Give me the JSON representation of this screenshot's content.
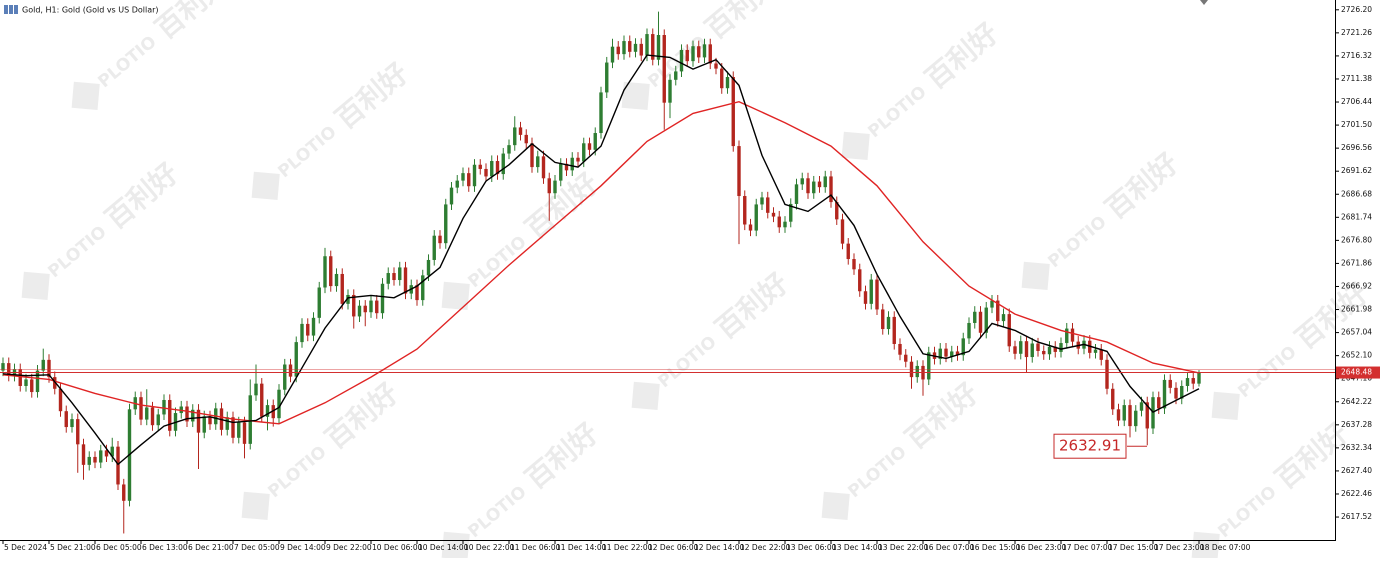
{
  "chart_data": {
    "type": "candlestick",
    "title": "Gold, H1:  Gold (Gold vs US Dollar)",
    "watermark": [
      "PLOTIO",
      "百利好"
    ],
    "up_color": "#2e7d32",
    "down_color": "#b3261e",
    "categories": [
      "5 Dec 2024",
      null,
      null,
      null,
      null,
      null,
      null,
      null,
      "5 Dec 21:00",
      null,
      null,
      null,
      null,
      null,
      null,
      null,
      "6 Dec 05:00",
      null,
      null,
      null,
      null,
      null,
      null,
      null,
      "6 Dec 13:00",
      null,
      null,
      null,
      null,
      null,
      null,
      null,
      "6 Dec 21:00",
      null,
      null,
      null,
      null,
      null,
      null,
      null,
      "7 Dec 05:00",
      null,
      null,
      null,
      null,
      null,
      null,
      null,
      "9 Dec 14:00",
      null,
      null,
      null,
      null,
      null,
      null,
      null,
      "9 Dec 22:00",
      null,
      null,
      null,
      null,
      null,
      null,
      null,
      "10 Dec 06:00",
      null,
      null,
      null,
      null,
      null,
      null,
      null,
      "10 Dec 14:00",
      null,
      null,
      null,
      null,
      null,
      null,
      null,
      "10 Dec 22:00",
      null,
      null,
      null,
      null,
      null,
      null,
      null,
      "11 Dec 06:00",
      null,
      null,
      null,
      null,
      null,
      null,
      null,
      "11 Dec 14:00",
      null,
      null,
      null,
      null,
      null,
      null,
      null,
      "11 Dec 22:00",
      null,
      null,
      null,
      null,
      null,
      null,
      null,
      "12 Dec 06:00",
      null,
      null,
      null,
      null,
      null,
      null,
      null,
      "12 Dec 14:00",
      null,
      null,
      null,
      null,
      null,
      null,
      null,
      "12 Dec 22:00",
      null,
      null,
      null,
      null,
      null,
      null,
      null,
      "13 Dec 06:00",
      null,
      null,
      null,
      null,
      null,
      null,
      null,
      "13 Dec 14:00",
      null,
      null,
      null,
      null,
      null,
      null,
      null,
      "13 Dec 22:00",
      null,
      null,
      null,
      null,
      null,
      null,
      null,
      "16 Dec 07:00",
      null,
      null,
      null,
      null,
      null,
      null,
      null,
      "16 Dec 15:00",
      null,
      null,
      null,
      null,
      null,
      null,
      null,
      "16 Dec 23:00",
      null,
      null,
      null,
      null,
      null,
      null,
      null,
      "17 Dec 07:00",
      null,
      null,
      null,
      null,
      null,
      null,
      null,
      "17 Dec 15:00",
      null,
      null,
      null,
      null,
      null,
      null,
      null,
      "17 Dec 23:00",
      null,
      null,
      null,
      null,
      null,
      null,
      null,
      "18 Dec 07:00"
    ],
    "open": [
      2648.9,
      2650.5,
      2647.8,
      2649.2,
      2645.6,
      2647.0,
      2644.3,
      2648.9,
      2651.2,
      2647.5,
      2645.0,
      2640.2,
      2636.8,
      2638.5,
      2633.1,
      2628.7,
      2630.4,
      2629.2,
      2631.8,
      2630.5,
      2632.6,
      2624.5,
      2621.0,
      2640.6,
      2643.2,
      2638.4,
      2641.0,
      2637.2,
      2639.5,
      2642.6,
      2636.0,
      2639.8,
      2641.2,
      2638.0,
      2640.5,
      2635.6,
      2639.1,
      2637.4,
      2640.8,
      2636.2,
      2638.9,
      2634.5,
      2637.8,
      2633.2,
      2643.6,
      2646.1,
      2639.0,
      2641.5,
      2638.7,
      2644.8,
      2650.2,
      2647.6,
      2655.0,
      2658.9,
      2656.4,
      2660.2,
      2666.7,
      2673.4,
      2667.0,
      2669.6,
      2663.2,
      2665.1,
      2660.5,
      2662.8,
      2661.4,
      2663.9,
      2661.2,
      2667.5,
      2669.8,
      2668.3,
      2671.0,
      2665.4,
      2667.2,
      2664.0,
      2669.3,
      2672.6,
      2677.8,
      2676.2,
      2684.5,
      2688.1,
      2689.6,
      2691.2,
      2688.4,
      2693.0,
      2692.1,
      2690.5,
      2693.8,
      2691.0,
      2695.4,
      2697.2,
      2701.0,
      2699.4,
      2697.6,
      2692.5,
      2694.8,
      2690.1,
      2686.9,
      2689.6,
      2693.2,
      2691.8,
      2694.5,
      2693.7,
      2697.6,
      2696.2,
      2699.8,
      2708.5,
      2714.9,
      2718.3,
      2716.7,
      2719.5,
      2717.2,
      2718.9,
      2716.4,
      2721.0,
      2715.5,
      2720.8,
      2706.3,
      2711.2,
      2713.0,
      2717.6,
      2715.2,
      2718.4,
      2716.0,
      2718.8,
      2714.7,
      2713.6,
      2709.4,
      2711.8,
      2697.0,
      2686.3,
      2680.2,
      2678.9,
      2684.5,
      2686.0,
      2682.7,
      2681.9,
      2679.6,
      2680.8,
      2684.6,
      2688.8,
      2690.1,
      2686.9,
      2689.4,
      2688.2,
      2690.5,
      2685.0,
      2681.3,
      2676.1,
      2672.8,
      2670.6,
      2665.9,
      2663.2,
      2668.4,
      2662.0,
      2657.8,
      2660.4,
      2654.6,
      2652.3,
      2650.8,
      2647.5,
      2649.9,
      2647.0,
      2652.8,
      2651.4,
      2653.6,
      2651.9,
      2653.0,
      2652.2,
      2655.8,
      2659.1,
      2661.5,
      2657.0,
      2662.4,
      2663.9,
      2659.5,
      2661.0,
      2654.1,
      2652.5,
      2655.2,
      2651.8,
      2654.7,
      2653.1,
      2652.4,
      2654.0,
      2652.9,
      2654.8,
      2657.9,
      2655.1,
      2653.6,
      2655.3,
      2652.7,
      2653.4,
      2651.2,
      2645.0,
      2640.6,
      2638.2,
      2641.5,
      2637.0,
      2640.3,
      2642.1,
      2636.5,
      2643.2,
      2640.8,
      2646.9,
      2645.2,
      2642.9,
      2645.6,
      2647.3,
      2646.1
    ],
    "high": [
      2651.7,
      2651.7,
      2650.4,
      2650.4,
      2648.2,
      2648.2,
      2650.1,
      2653.6,
      2652.4,
      2648.7,
      2646.2,
      2641.4,
      2639.7,
      2639.7,
      2634.3,
      2631.6,
      2631.6,
      2633.0,
      2633.0,
      2634.5,
      2633.8,
      2625.7,
      2641.8,
      2644.4,
      2644.4,
      2644.9,
      2642.2,
      2640.7,
      2643.8,
      2643.8,
      2641.0,
      2642.4,
      2642.4,
      2641.7,
      2641.7,
      2640.3,
      2640.3,
      2642.0,
      2642.0,
      2640.1,
      2640.1,
      2639.0,
      2639.0,
      2647.0,
      2650.2,
      2647.3,
      2642.7,
      2642.7,
      2646.0,
      2651.4,
      2651.4,
      2656.2,
      2660.1,
      2660.1,
      2661.4,
      2667.9,
      2675.2,
      2674.6,
      2670.8,
      2670.8,
      2666.3,
      2666.3,
      2664.0,
      2664.0,
      2665.1,
      2665.1,
      2668.7,
      2671.0,
      2671.0,
      2672.2,
      2672.2,
      2668.4,
      2668.4,
      2670.5,
      2673.8,
      2679.0,
      2679.0,
      2685.7,
      2689.3,
      2690.8,
      2692.4,
      2692.4,
      2694.2,
      2694.2,
      2693.3,
      2695.0,
      2695.0,
      2696.6,
      2698.4,
      2703.4,
      2702.2,
      2700.6,
      2698.8,
      2696.0,
      2696.0,
      2691.3,
      2690.8,
      2694.4,
      2694.4,
      2695.7,
      2695.7,
      2698.8,
      2698.8,
      2701.0,
      2709.7,
      2716.1,
      2720.0,
      2719.5,
      2720.7,
      2720.7,
      2720.1,
      2720.1,
      2722.2,
      2722.2,
      2725.8,
      2722.0,
      2712.4,
      2714.2,
      2718.8,
      2718.8,
      2719.6,
      2719.6,
      2720.0,
      2720.0,
      2715.9,
      2714.8,
      2713.0,
      2713.0,
      2698.2,
      2687.5,
      2681.4,
      2685.7,
      2687.2,
      2687.2,
      2683.9,
      2683.1,
      2682.0,
      2685.8,
      2690.0,
      2691.3,
      2691.3,
      2690.6,
      2690.6,
      2691.7,
      2691.7,
      2686.2,
      2682.5,
      2677.3,
      2674.0,
      2671.8,
      2667.1,
      2669.6,
      2669.6,
      2663.2,
      2661.6,
      2661.6,
      2655.8,
      2653.5,
      2652.0,
      2651.1,
      2651.1,
      2654.0,
      2654.0,
      2654.8,
      2654.8,
      2654.2,
      2654.2,
      2657.0,
      2660.3,
      2662.7,
      2662.7,
      2663.6,
      2665.1,
      2665.1,
      2662.2,
      2662.2,
      2655.3,
      2656.4,
      2656.4,
      2655.9,
      2655.9,
      2654.3,
      2655.2,
      2655.2,
      2656.0,
      2659.1,
      2659.1,
      2656.3,
      2656.5,
      2656.5,
      2654.6,
      2654.6,
      2652.4,
      2646.2,
      2641.8,
      2642.7,
      2642.7,
      2641.5,
      2643.3,
      2643.3,
      2644.4,
      2644.4,
      2648.1,
      2648.1,
      2646.4,
      2646.8,
      2648.5,
      2648.5,
      2649.0
    ],
    "low": [
      2647.7,
      2646.6,
      2646.6,
      2644.4,
      2644.4,
      2643.1,
      2643.1,
      2647.7,
      2646.3,
      2643.8,
      2639.0,
      2635.6,
      2635.6,
      2627.0,
      2625.5,
      2627.5,
      2628.0,
      2628.0,
      2629.3,
      2629.3,
      2623.3,
      2614.0,
      2619.8,
      2639.4,
      2637.2,
      2637.2,
      2636.0,
      2636.0,
      2638.3,
      2634.8,
      2634.8,
      2638.6,
      2636.8,
      2636.8,
      2627.8,
      2634.4,
      2636.2,
      2636.2,
      2635.0,
      2635.0,
      2633.3,
      2633.3,
      2630.1,
      2632.0,
      2642.4,
      2637.8,
      2636.1,
      2636.9,
      2637.5,
      2643.6,
      2646.4,
      2646.4,
      2653.8,
      2655.2,
      2655.2,
      2659.0,
      2665.5,
      2665.8,
      2665.8,
      2662.0,
      2662.0,
      2657.9,
      2659.3,
      2658.4,
      2660.2,
      2660.0,
      2660.0,
      2666.3,
      2667.1,
      2667.1,
      2664.2,
      2664.2,
      2662.8,
      2662.8,
      2668.1,
      2671.4,
      2675.0,
      2675.0,
      2683.3,
      2686.9,
      2688.4,
      2687.2,
      2687.2,
      2690.9,
      2689.3,
      2689.3,
      2689.8,
      2689.8,
      2694.2,
      2696.0,
      2698.2,
      2696.4,
      2691.3,
      2691.3,
      2688.9,
      2681.0,
      2685.7,
      2688.4,
      2690.6,
      2690.6,
      2692.5,
      2692.5,
      2695.0,
      2695.0,
      2698.6,
      2707.3,
      2713.7,
      2715.5,
      2715.5,
      2716.0,
      2716.0,
      2715.2,
      2715.2,
      2714.3,
      2714.3,
      2700.5,
      2703.0,
      2710.0,
      2711.8,
      2714.0,
      2714.0,
      2714.8,
      2714.8,
      2713.5,
      2712.4,
      2708.2,
      2708.2,
      2695.8,
      2676.0,
      2679.0,
      2677.7,
      2677.7,
      2683.3,
      2681.5,
      2680.7,
      2678.4,
      2678.4,
      2679.6,
      2683.4,
      2687.6,
      2685.7,
      2685.7,
      2687.0,
      2687.0,
      2683.8,
      2680.1,
      2674.9,
      2671.6,
      2669.4,
      2664.7,
      2662.0,
      2662.0,
      2660.8,
      2656.6,
      2656.6,
      2653.4,
      2651.1,
      2649.6,
      2645.0,
      2646.3,
      2643.5,
      2645.8,
      2650.2,
      2650.2,
      2650.7,
      2650.7,
      2651.0,
      2651.0,
      2654.6,
      2657.9,
      2655.8,
      2655.8,
      2661.2,
      2658.3,
      2658.3,
      2652.9,
      2651.3,
      2651.3,
      2648.6,
      2650.6,
      2651.9,
      2651.2,
      2651.2,
      2651.7,
      2651.7,
      2653.6,
      2653.9,
      2652.4,
      2652.4,
      2651.5,
      2651.5,
      2650.0,
      2643.8,
      2639.4,
      2637.0,
      2637.0,
      2634.6,
      2635.8,
      2639.1,
      2632.9,
      2635.3,
      2639.6,
      2639.6,
      2644.0,
      2641.7,
      2641.7,
      2644.4,
      2644.9,
      2645.5
    ],
    "close": [
      2650.5,
      2647.8,
      2649.2,
      2645.6,
      2647.0,
      2644.3,
      2648.9,
      2651.2,
      2647.5,
      2645.0,
      2640.2,
      2636.8,
      2638.5,
      2633.1,
      2628.7,
      2630.4,
      2629.2,
      2631.8,
      2630.5,
      2632.6,
      2624.5,
      2621.0,
      2640.6,
      2643.2,
      2638.4,
      2641.0,
      2637.2,
      2639.5,
      2642.6,
      2636.0,
      2639.8,
      2641.2,
      2638.0,
      2640.5,
      2635.6,
      2639.1,
      2637.4,
      2640.8,
      2636.2,
      2638.9,
      2634.5,
      2637.8,
      2633.2,
      2643.6,
      2646.1,
      2639.0,
      2641.5,
      2638.7,
      2644.8,
      2650.2,
      2647.6,
      2655.0,
      2658.9,
      2656.4,
      2660.2,
      2666.7,
      2673.4,
      2667.0,
      2669.6,
      2663.2,
      2665.1,
      2660.5,
      2662.8,
      2661.4,
      2663.9,
      2661.2,
      2667.5,
      2669.8,
      2668.3,
      2671.0,
      2665.4,
      2667.2,
      2664.0,
      2669.3,
      2672.6,
      2677.8,
      2676.2,
      2684.5,
      2688.1,
      2689.6,
      2691.2,
      2688.4,
      2693.0,
      2692.1,
      2690.5,
      2693.8,
      2691.0,
      2695.4,
      2697.2,
      2701.0,
      2699.4,
      2697.6,
      2692.5,
      2694.8,
      2690.1,
      2686.9,
      2689.6,
      2693.2,
      2691.8,
      2694.5,
      2693.7,
      2697.6,
      2696.2,
      2699.8,
      2708.5,
      2714.9,
      2718.3,
      2716.7,
      2719.5,
      2717.2,
      2718.9,
      2716.4,
      2721.0,
      2715.5,
      2720.8,
      2706.3,
      2711.2,
      2713.0,
      2717.6,
      2715.2,
      2718.4,
      2716.0,
      2718.8,
      2714.7,
      2713.6,
      2709.4,
      2711.8,
      2697.0,
      2686.3,
      2680.2,
      2678.9,
      2684.5,
      2686.0,
      2682.7,
      2681.9,
      2679.6,
      2680.8,
      2684.6,
      2688.8,
      2690.1,
      2686.9,
      2689.4,
      2688.2,
      2690.5,
      2685.0,
      2681.3,
      2676.1,
      2672.8,
      2670.6,
      2665.9,
      2663.2,
      2668.4,
      2662.0,
      2657.8,
      2660.4,
      2654.6,
      2652.3,
      2650.8,
      2647.5,
      2649.9,
      2647.0,
      2652.8,
      2651.4,
      2653.6,
      2651.9,
      2653.0,
      2652.2,
      2655.8,
      2659.1,
      2661.5,
      2657.0,
      2662.4,
      2663.9,
      2659.5,
      2661.0,
      2654.1,
      2652.5,
      2655.2,
      2651.8,
      2654.7,
      2653.1,
      2652.4,
      2654.0,
      2652.9,
      2654.8,
      2657.9,
      2655.1,
      2653.6,
      2655.3,
      2652.7,
      2653.4,
      2651.2,
      2645.0,
      2640.6,
      2638.2,
      2641.5,
      2637.0,
      2640.3,
      2642.1,
      2636.5,
      2643.2,
      2640.8,
      2646.9,
      2645.2,
      2642.9,
      2645.6,
      2647.3,
      2646.1,
      2648.48
    ],
    "series": [
      {
        "color": "#e02424",
        "x": [
          0,
          8,
          16,
          24,
          32,
          40,
          48,
          56,
          64,
          72,
          80,
          88,
          96,
          104,
          112,
          120,
          128,
          136,
          144,
          152,
          160,
          168,
          176,
          184,
          192,
          200,
          208
        ],
        "values": [
          2648.0,
          2647.0,
          2644.0,
          2641.5,
          2640.2,
          2638.5,
          2637.5,
          2642.0,
          2647.5,
          2653.5,
          2662.5,
          2671.5,
          2680.0,
          2688.5,
          2698.0,
          2704.0,
          2706.5,
          2702.0,
          2697.0,
          2688.5,
          2676.5,
          2667.0,
          2661.0,
          2657.5,
          2655.0,
          2650.5,
          2648.4
        ]
      },
      {
        "color": "#000000",
        "x": [
          0,
          4,
          8,
          12,
          16,
          20,
          24,
          28,
          32,
          36,
          40,
          44,
          48,
          52,
          56,
          60,
          64,
          68,
          72,
          76,
          80,
          84,
          88,
          92,
          96,
          100,
          104,
          108,
          112,
          116,
          120,
          124,
          128,
          132,
          136,
          140,
          144,
          148,
          152,
          156,
          160,
          164,
          168,
          172,
          176,
          180,
          184,
          188,
          192,
          196,
          200,
          204,
          208
        ],
        "values": [
          2648.2,
          2647.8,
          2648.0,
          2642.0,
          2635.5,
          2628.8,
          2633.0,
          2637.0,
          2638.6,
          2639.0,
          2637.8,
          2638.2,
          2641.0,
          2649.5,
          2658.0,
          2664.5,
          2665.0,
          2664.5,
          2667.0,
          2671.0,
          2681.5,
          2689.5,
          2693.0,
          2697.5,
          2693.5,
          2692.5,
          2697.0,
          2709.0,
          2716.5,
          2716.0,
          2713.5,
          2715.5,
          2710.0,
          2695.0,
          2684.5,
          2683.0,
          2686.5,
          2680.0,
          2669.5,
          2660.5,
          2652.5,
          2651.5,
          2653.0,
          2659.0,
          2657.5,
          2655.0,
          2653.5,
          2654.5,
          2653.0,
          2645.5,
          2640.0,
          2642.5,
          2645.0
        ]
      }
    ],
    "price_line": {
      "value": 2648.48,
      "color": "#d32f2f"
    },
    "low_label": {
      "value": 2632.91,
      "color": "#c62828"
    },
    "ylim": [
      2612.6,
      2728.3
    ],
    "yticks": [
      {
        "value": 2726.2,
        "label": "2726.20"
      },
      2721.26,
      2716.32,
      2711.38,
      2706.44,
      {
        "value": 2701.5,
        "label": "2701.50"
      },
      2696.56,
      2691.62,
      2686.68,
      2681.74,
      {
        "value": 2676.8,
        "label": "2676.80"
      },
      2671.86,
      2666.92,
      2661.98,
      2657.04,
      {
        "value": 2652.1,
        "label": "2652.10"
      },
      2647.16,
      2642.22,
      2637.28,
      2632.34,
      {
        "value": 2627.4,
        "label": "2627.40"
      },
      2622.46,
      2617.52
    ]
  }
}
